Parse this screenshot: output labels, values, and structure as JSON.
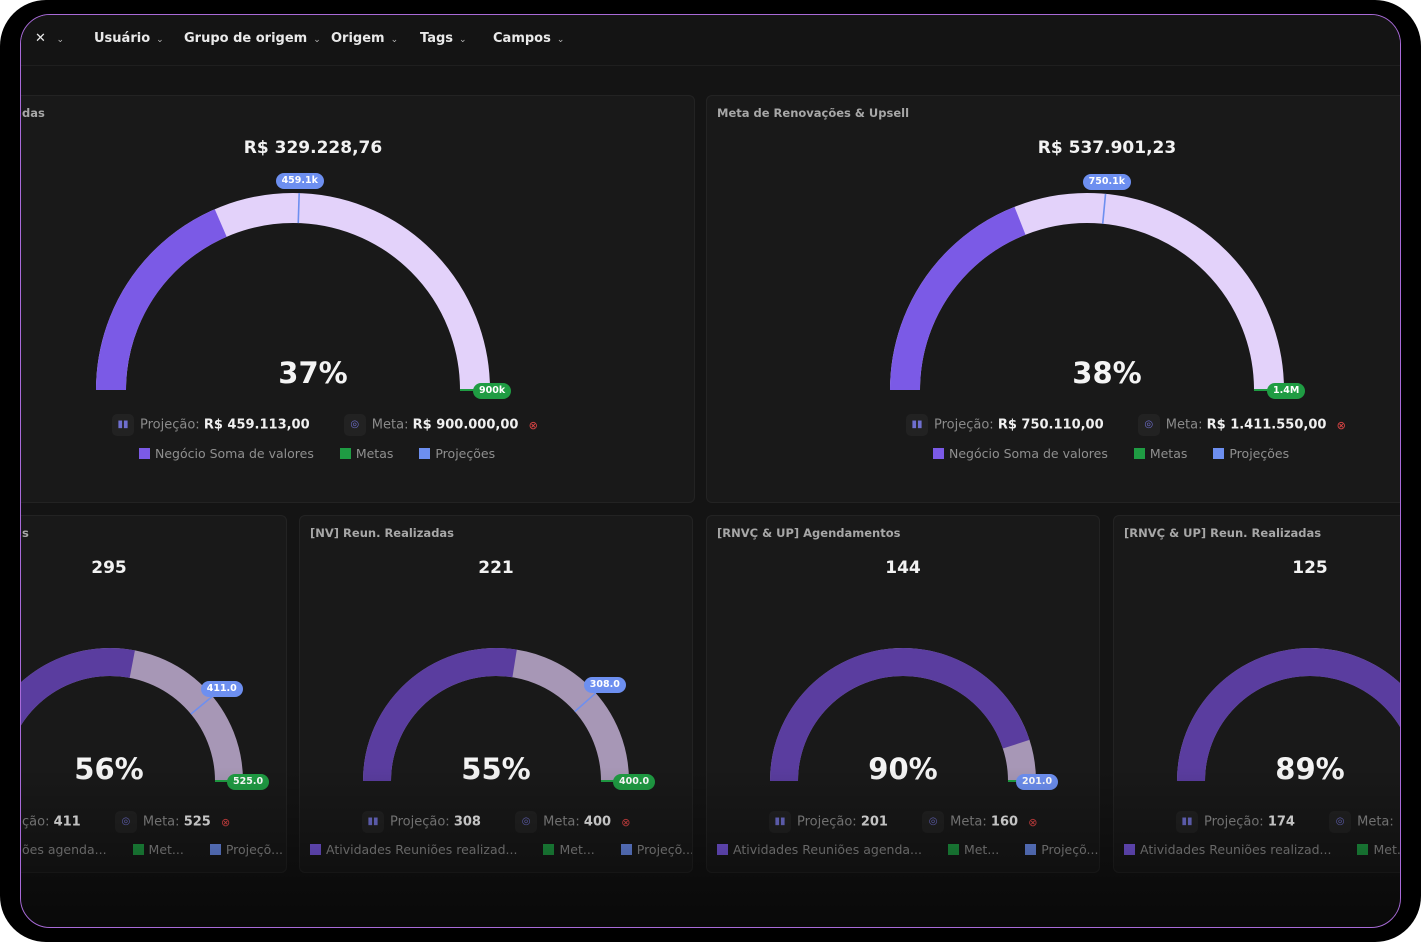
{
  "filters": [
    "Usuário",
    "Grupo de origem",
    "Origem",
    "Tags",
    "Campos"
  ],
  "colors": {
    "primary": "#7b5ae6",
    "metas": "#1f9c43",
    "projecoes": "#6d8ff0",
    "track": "#e3d2fa"
  },
  "cards_top": [
    {
      "title": "das",
      "value": "R$ 329.228,76",
      "percent_label": "37%",
      "progress": 0.37,
      "projection_fraction": 0.51,
      "projection_badge": "459.1k",
      "goal_badge": "900k",
      "projecao_label": "Projeção:",
      "projecao_value": "R$ 459.113,00",
      "meta_label": "Meta:",
      "meta_value": "R$ 900.000,00",
      "legend": [
        "Negócio Soma de valores",
        "Metas",
        "Projeções"
      ]
    },
    {
      "title": "Meta de Renovações & Upsell",
      "value": "R$ 537.901,23",
      "percent_label": "38%",
      "progress": 0.38,
      "projection_fraction": 0.53,
      "projection_badge": "750.1k",
      "goal_badge": "1.4M",
      "projecao_label": "Projeção:",
      "projecao_value": "R$ 750.110,00",
      "meta_label": "Meta:",
      "meta_value": "R$ 1.411.550,00",
      "legend": [
        "Negócio Soma de valores",
        "Metas",
        "Projeções"
      ]
    }
  ],
  "cards_bottom": [
    {
      "title": "s",
      "value": "295",
      "percent_label": "56%",
      "progress": 0.56,
      "projection_fraction": 0.78,
      "projection_badge": "411.0",
      "goal_badge": "525.0",
      "projecao_label": "ção:",
      "projecao_value": "411",
      "meta_label": "Meta:",
      "meta_value": "525",
      "legend": [
        "ões agenda...",
        "Met...",
        "Projeçõ..."
      ]
    },
    {
      "title": "[NV] Reun. Realizadas",
      "value": "221",
      "percent_label": "55%",
      "progress": 0.55,
      "projection_fraction": 0.77,
      "projection_badge": "308.0",
      "goal_badge": "400.0",
      "projecao_label": "Projeção:",
      "projecao_value": "308",
      "meta_label": "Meta:",
      "meta_value": "400",
      "legend": [
        "Atividades Reuniões realizad...",
        "Met...",
        "Projeçõ..."
      ]
    },
    {
      "title": "[RNVÇ & UP] Agendamentos",
      "value": "144",
      "percent_label": "90%",
      "progress": 0.9,
      "projection_fraction": 1.0,
      "projection_badge": "201.0",
      "goal_badge": "",
      "projecao_label": "Projeção:",
      "projecao_value": "201",
      "meta_label": "Meta:",
      "meta_value": "160",
      "legend": [
        "Atividades Reuniões agenda...",
        "Met...",
        "Projeçõ..."
      ]
    },
    {
      "title": "[RNVÇ & UP] Reun. Realizadas",
      "value": "125",
      "percent_label": "89%",
      "progress": 0.89,
      "projection_fraction": 1.0,
      "projection_badge": "",
      "goal_badge": "",
      "projecao_label": "Projeção:",
      "projecao_value": "174",
      "meta_label": "Meta:",
      "meta_value": "",
      "legend": [
        "Atividades Reuniões realizad...",
        "Met...",
        ""
      ]
    }
  ]
}
